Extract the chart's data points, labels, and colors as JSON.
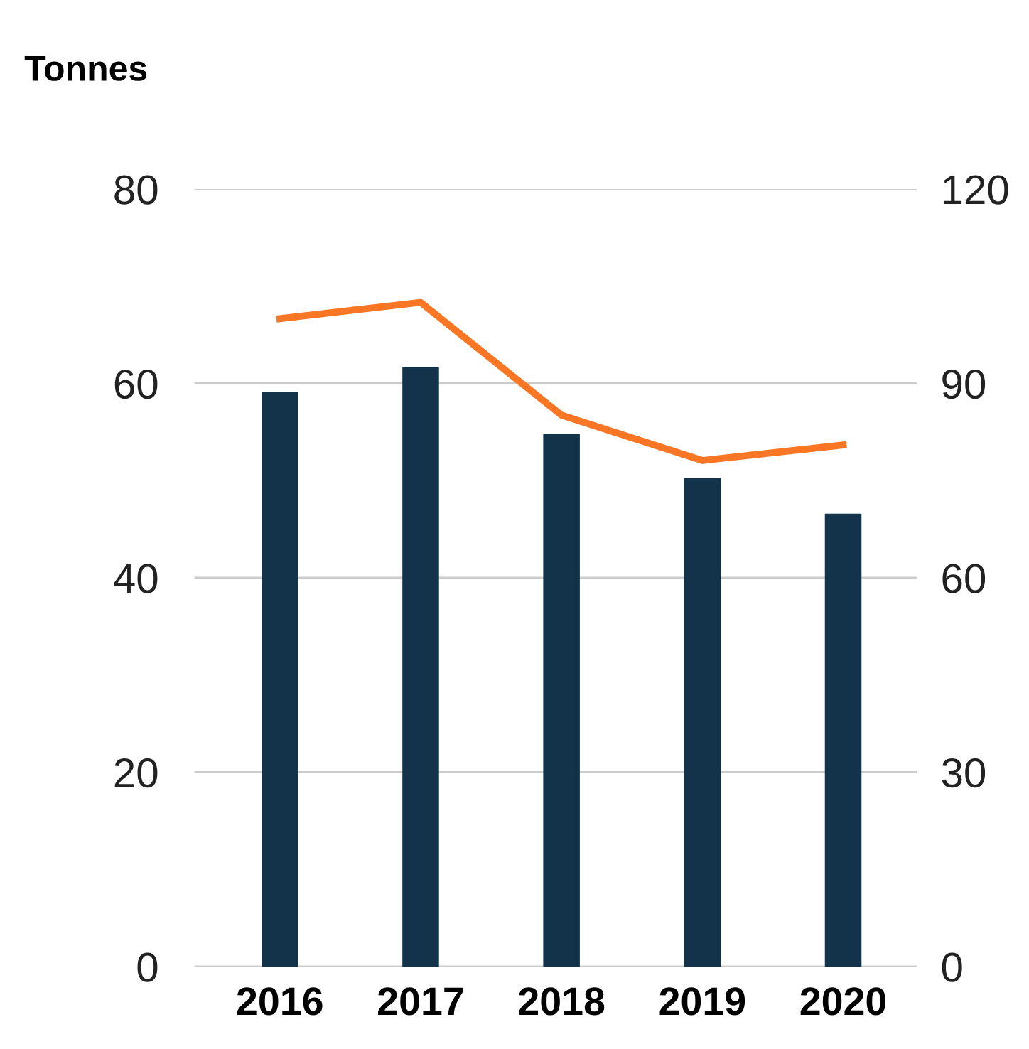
{
  "chart_data": {
    "type": "bar",
    "ylabel": "Tonnes",
    "categories": [
      "2016",
      "2017",
      "2018",
      "2019",
      "2020"
    ],
    "series": [
      {
        "color": "#12334a",
        "values": [
          59.1,
          61.7,
          54.8,
          50.3,
          46.6
        ]
      },
      {
        "type": "line",
        "axis": "y2",
        "color": "#f97624",
        "values": [
          100.0,
          102.5,
          85.1,
          78.1,
          80.5
        ]
      }
    ],
    "ylim": [
      0,
      80
    ],
    "yticks": [
      0,
      20,
      40,
      60,
      80
    ],
    "y2lim": [
      0,
      120
    ],
    "y2ticks": [
      0,
      30,
      60,
      90,
      120
    ],
    "grid": "y",
    "marker": "none",
    "line_style": "solid"
  }
}
